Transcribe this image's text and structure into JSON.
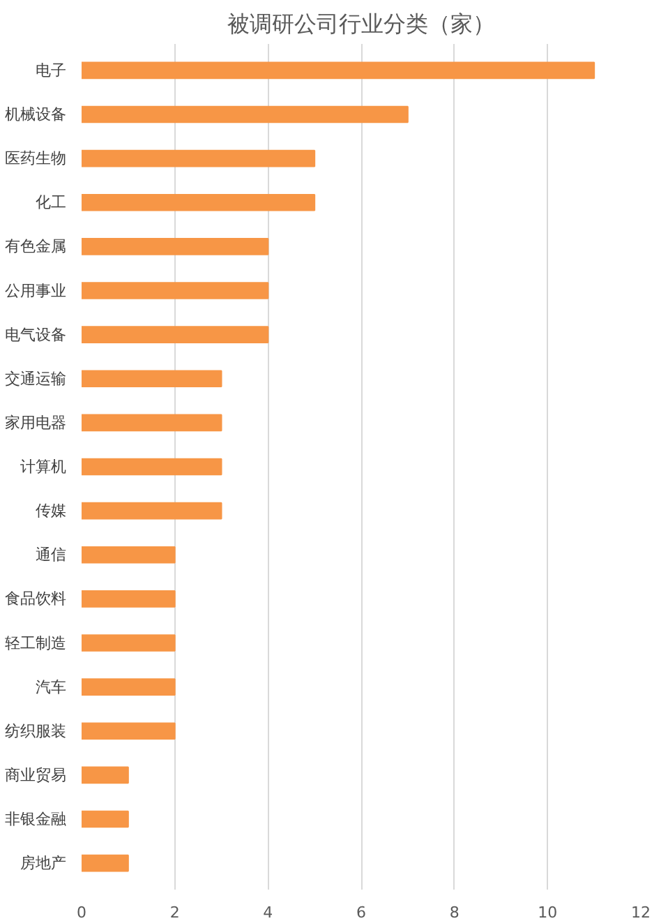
{
  "chart_data": {
    "type": "bar",
    "orientation": "horizontal",
    "title": "被调研公司行业分类（家）",
    "categories": [
      "电子",
      "机械设备",
      "医药生物",
      "化工",
      "有色金属",
      "公用事业",
      "电气设备",
      "交通运输",
      "家用电器",
      "计算机",
      "传媒",
      "通信",
      "食品饮料",
      "轻工制造",
      "汽车",
      "纺织服装",
      "商业贸易",
      "非银金融",
      "房地产"
    ],
    "values": [
      11,
      7,
      5,
      5,
      4,
      4,
      4,
      3,
      3,
      3,
      3,
      2,
      2,
      2,
      2,
      2,
      1,
      1,
      1
    ],
    "color": "#f79646",
    "xlim": [
      0,
      12
    ],
    "xticks": [
      0,
      2,
      4,
      6,
      8,
      10,
      12
    ],
    "grid": "x"
  }
}
